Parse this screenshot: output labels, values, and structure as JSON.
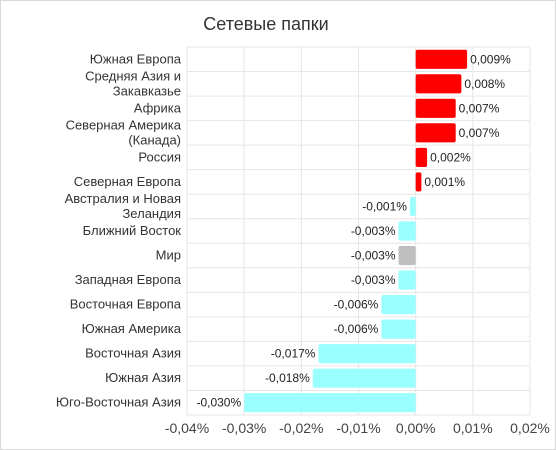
{
  "chart_data": {
    "type": "bar",
    "orientation": "horizontal",
    "title": "Сетевые папки",
    "categories": [
      "Южная Европа",
      "Средняя Азия и Закавказье",
      "Африка",
      "Северная Америка (Канада)",
      "Россия",
      "Северная Европа",
      "Австралия и Новая Зеландия",
      "Ближний Восток",
      "Мир",
      "Западная Европа",
      "Восточная Европа",
      "Южная Америка",
      "Восточная Азия",
      "Южная Азия",
      "Юго-Восточная Азия"
    ],
    "category_lines": [
      [
        "Южная Европа"
      ],
      [
        "Средняя Азия и",
        "Закавказье"
      ],
      [
        "Африка"
      ],
      [
        "Северная Америка",
        "(Канада)"
      ],
      [
        "Россия"
      ],
      [
        "Северная Европа"
      ],
      [
        "Австралия и Новая",
        "Зеландия"
      ],
      [
        "Ближний Восток"
      ],
      [
        "Мир"
      ],
      [
        "Западная Европа"
      ],
      [
        "Восточная Европа"
      ],
      [
        "Южная Америка"
      ],
      [
        "Восточная Азия"
      ],
      [
        "Южная Азия"
      ],
      [
        "Юго-Восточная Азия"
      ]
    ],
    "values": [
      0.009,
      0.008,
      0.007,
      0.007,
      0.002,
      0.001,
      -0.001,
      -0.003,
      -0.003,
      -0.003,
      -0.006,
      -0.006,
      -0.017,
      -0.018,
      -0.03
    ],
    "value_labels": [
      "0,009%",
      "0,008%",
      "0,007%",
      "0,007%",
      "0,002%",
      "0,001%",
      "-0,001%",
      "-0,003%",
      "-0,003%",
      "-0,003%",
      "-0,006%",
      "-0,006%",
      "-0,017%",
      "-0,018%",
      "-0,030%"
    ],
    "xlim": [
      -0.04,
      0.02
    ],
    "xticks": [
      -0.04,
      -0.03,
      -0.02,
      -0.01,
      0.0,
      0.01,
      0.02
    ],
    "xtick_labels": [
      "-0,04%",
      "-0,03%",
      "-0,02%",
      "-0,01%",
      "0,00%",
      "0,01%",
      "0,02%"
    ],
    "xlabel": "",
    "ylabel": "",
    "grid": true,
    "colors": {
      "positive": "#ff0000",
      "negative": "#99ffff",
      "world": "#bfbfbf"
    },
    "highlight_category": "Мир"
  }
}
